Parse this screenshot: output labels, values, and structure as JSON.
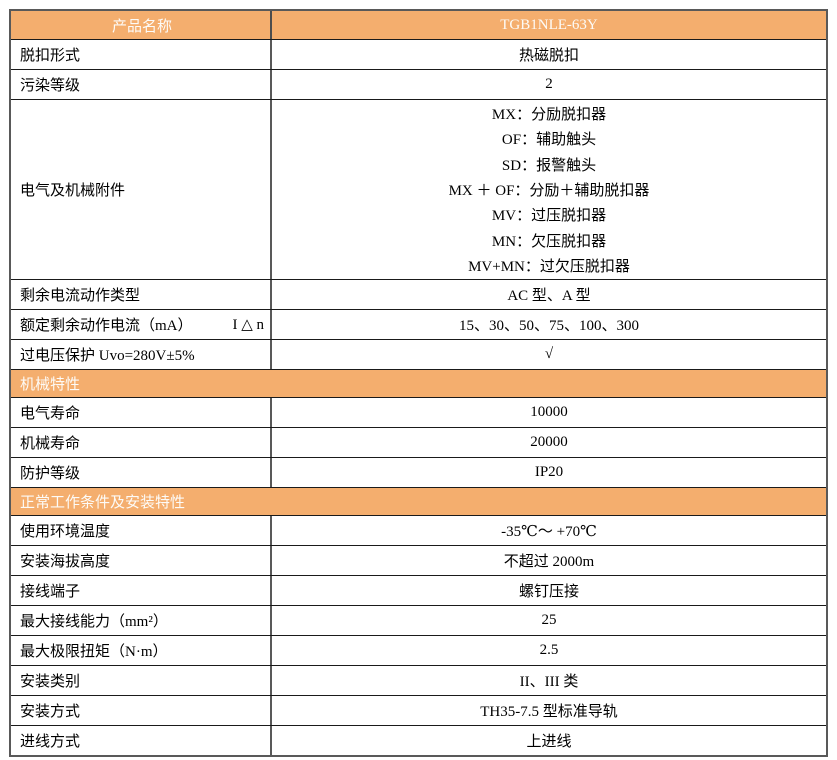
{
  "colors": {
    "accent_orange": "#F4AE6E",
    "header_text": "#FFFFFF",
    "body_text": "#000000",
    "border_gray": "#595959",
    "border_dark": "#1A1A1A"
  },
  "table": {
    "header": {
      "label": "产品名称",
      "value": "TGB1NLE-63Y"
    },
    "rows": [
      {
        "type": "data",
        "label": "脱扣形式",
        "value": "热磁脱扣"
      },
      {
        "type": "data",
        "label": "污染等级",
        "value": "2"
      },
      {
        "type": "multi",
        "label": "电气及机械附件",
        "lines": [
          "MX：分励脱扣器",
          "OF：辅助触头",
          "SD：报警触头",
          "MX ＋ OF：分励＋辅助脱扣器",
          "MV：过压脱扣器",
          "MN：欠压脱扣器",
          "MV+MN：过欠压脱扣器"
        ]
      },
      {
        "type": "data",
        "label": "剩余电流动作类型",
        "value": "AC 型、A 型"
      },
      {
        "type": "data",
        "label": "额定剩余动作电流（mA）",
        "label_right": "I △ n",
        "value": "15、30、50、75、100、300"
      },
      {
        "type": "data",
        "label": "过电压保护 Uvo=280V±5%",
        "value": "√"
      },
      {
        "type": "section",
        "label": "机械特性"
      },
      {
        "type": "data",
        "label": "电气寿命",
        "value": "10000"
      },
      {
        "type": "data",
        "label": "机械寿命",
        "value": "20000"
      },
      {
        "type": "data",
        "label": "防护等级",
        "value": "IP20"
      },
      {
        "type": "section",
        "label": "正常工作条件及安装特性"
      },
      {
        "type": "data",
        "label": "使用环境温度",
        "value": "-35℃～ +70℃"
      },
      {
        "type": "data",
        "label": "安装海拔高度",
        "value": "不超过 2000m"
      },
      {
        "type": "data",
        "label": "接线端子",
        "value": "螺钉压接"
      },
      {
        "type": "data",
        "label": "最大接线能力（mm²）",
        "value": "25"
      },
      {
        "type": "data",
        "label": "最大极限扭矩（N·m）",
        "value": "2.5"
      },
      {
        "type": "data",
        "label": "安装类别",
        "value": "II、III 类"
      },
      {
        "type": "data",
        "label": "安装方式",
        "value": "TH35-7.5 型标准导轨"
      },
      {
        "type": "data",
        "label": "进线方式",
        "value": "上进线"
      }
    ]
  }
}
